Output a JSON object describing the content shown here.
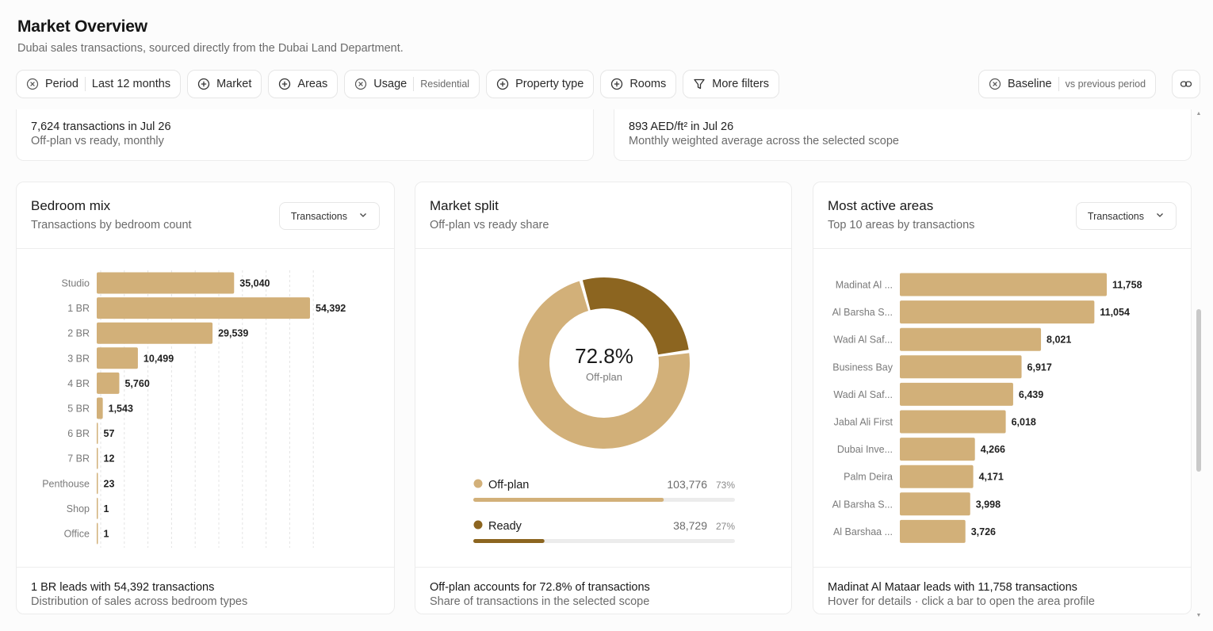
{
  "header": {
    "title": "Market Overview",
    "subtitle": "Dubai sales transactions, sourced directly from the Dubai Land Department."
  },
  "filters": {
    "period_label": "Period",
    "period_value": "Last 12 months",
    "market_label": "Market",
    "areas_label": "Areas",
    "usage_label": "Usage",
    "usage_value": "Residential",
    "property_type_label": "Property type",
    "rooms_label": "Rooms",
    "more_filters_label": "More filters",
    "baseline_label": "Baseline",
    "baseline_value": "vs previous period"
  },
  "kpis": {
    "transactions_title": "7,624 transactions in Jul 26",
    "transactions_sub": "Off-plan vs ready, monthly",
    "price_title": "893 AED/ft² in Jul 26",
    "price_sub": "Monthly weighted average across the selected scope"
  },
  "bedroom_card": {
    "title": "Bedroom mix",
    "subtitle": "Transactions by bedroom count",
    "dropdown_value": "Transactions",
    "footer_title": "1 BR leads with 54,392 transactions",
    "footer_sub": "Distribution of sales across bedroom types"
  },
  "split_card": {
    "title": "Market split",
    "subtitle": "Off-plan vs ready share",
    "center_value": "72.8%",
    "center_label": "Off-plan",
    "legend": [
      {
        "label": "Off-plan",
        "count": "103,776",
        "pct": "73%"
      },
      {
        "label": "Ready",
        "count": "38,729",
        "pct": "27%"
      }
    ],
    "footer_title": "Off-plan accounts for 72.8% of transactions",
    "footer_sub": "Share of transactions in the selected scope"
  },
  "areas_card": {
    "title": "Most active areas",
    "subtitle": "Top 10 areas by transactions",
    "dropdown_value": "Transactions",
    "footer_title": "Madinat Al Mataar leads with 11,758 transactions",
    "footer_sub": "Hover for details · click a bar to open the area profile"
  },
  "colors": {
    "bar": "#d2b079",
    "offplan": "#d2b079",
    "ready": "#8c6520",
    "track": "#ececec"
  },
  "chart_data": [
    {
      "type": "bar",
      "orientation": "horizontal",
      "categories": [
        "Studio",
        "1 BR",
        "2 BR",
        "3 BR",
        "4 BR",
        "5 BR",
        "6 BR",
        "7 BR",
        "Penthouse",
        "Shop",
        "Office"
      ],
      "values": [
        35040,
        54392,
        29539,
        10499,
        5760,
        1543,
        57,
        12,
        23,
        1,
        1
      ],
      "value_labels": [
        "35,040",
        "54,392",
        "29,539",
        "10,499",
        "5,760",
        "1,543",
        "57",
        "12",
        "23",
        "1",
        "1"
      ],
      "grid": true
    },
    {
      "type": "pie",
      "donut": true,
      "labels": [
        "Off-plan",
        "Ready"
      ],
      "values": [
        103776,
        38729
      ],
      "percent": [
        72.8,
        27.2
      ]
    },
    {
      "type": "bar",
      "orientation": "horizontal",
      "categories": [
        "Madinat Al ...",
        "Al Barsha S...",
        "Wadi Al Saf...",
        "Business Bay",
        "Wadi Al Saf...",
        "Jabal Ali First",
        "Dubai Inve...",
        "Palm Deira",
        "Al Barsha S...",
        "Al Barshaa ..."
      ],
      "values": [
        11758,
        11054,
        8021,
        6917,
        6439,
        6018,
        4266,
        4171,
        3998,
        3726
      ],
      "value_labels": [
        "11,758",
        "11,054",
        "8,021",
        "6,917",
        "6,439",
        "6,018",
        "4,266",
        "4,171",
        "3,998",
        "3,726"
      ],
      "grid": false
    }
  ]
}
